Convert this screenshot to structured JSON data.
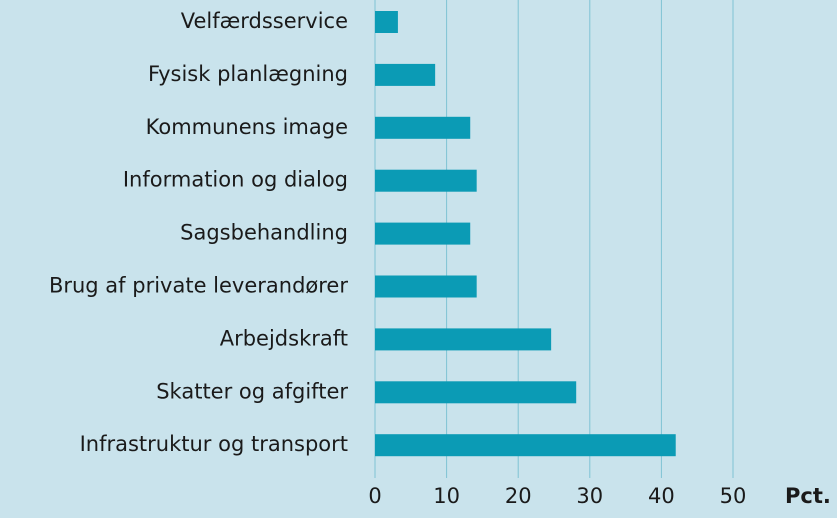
{
  "chart_data": {
    "type": "bar",
    "orientation": "horizontal",
    "categories": [
      "Velfærdsservice",
      "Fysisk planlægning",
      "Kommunens image",
      "Information og dialog",
      "Sagsbehandling",
      "Brug af private leverandører",
      "Arbejdskraft",
      "Skatter og afgifter",
      "Infrastruktur og transport"
    ],
    "values": [
      3.2,
      8.4,
      13.3,
      14.2,
      13.3,
      14.2,
      24.6,
      28.1,
      42.0
    ],
    "color": "#0b9bb5",
    "xlim": [
      0,
      50
    ],
    "xticks": [
      0,
      10,
      20,
      30,
      40,
      50
    ],
    "x_label": "Pct.",
    "grid": true
  }
}
